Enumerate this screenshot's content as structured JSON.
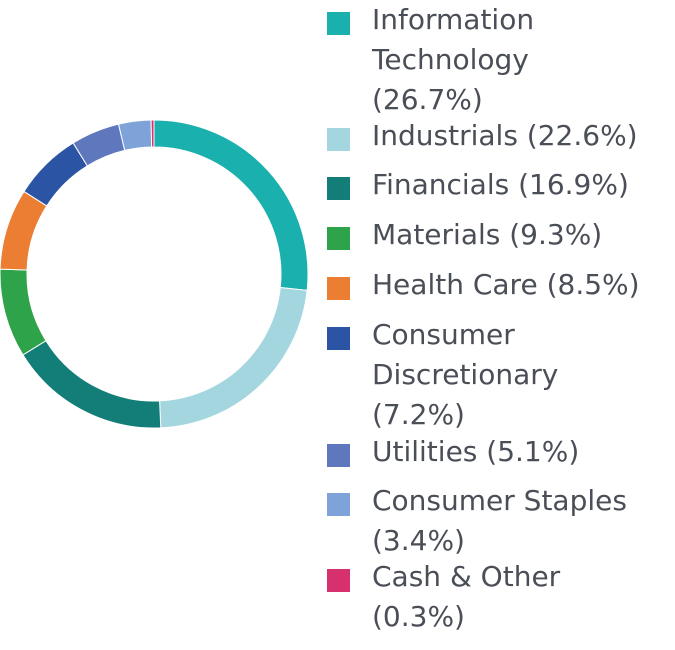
{
  "chart_data": {
    "type": "pie",
    "donut": true,
    "legend_position": "right",
    "start_angle_deg": 0,
    "direction": "clockwise",
    "series": [
      {
        "name": "Information Technology",
        "label": "Information Technology (26.7%)",
        "value": 26.7,
        "color": "#1ab0ae"
      },
      {
        "name": "Industrials",
        "label": "Industrials (22.6%)",
        "value": 22.6,
        "color": "#a4d6df"
      },
      {
        "name": "Financials",
        "label": "Financials (16.9%)",
        "value": 16.9,
        "color": "#137d77"
      },
      {
        "name": "Materials",
        "label": "Materials (9.3%)",
        "value": 9.3,
        "color": "#2fa34a"
      },
      {
        "name": "Health Care",
        "label": "Health Care (8.5%)",
        "value": 8.5,
        "color": "#ec7e33"
      },
      {
        "name": "Consumer Discretionary",
        "label": "Consumer Discretionary (7.2%)",
        "value": 7.2,
        "color": "#2c54a4"
      },
      {
        "name": "Utilities",
        "label": "Utilities (5.1%)",
        "value": 5.1,
        "color": "#5f78bd"
      },
      {
        "name": "Consumer Staples",
        "label": "Consumer Staples (3.4%)",
        "value": 3.4,
        "color": "#7ea3d8"
      },
      {
        "name": "Cash & Other",
        "label": "Cash & Other (0.3%)",
        "value": 0.3,
        "color": "#d6306f"
      }
    ]
  }
}
